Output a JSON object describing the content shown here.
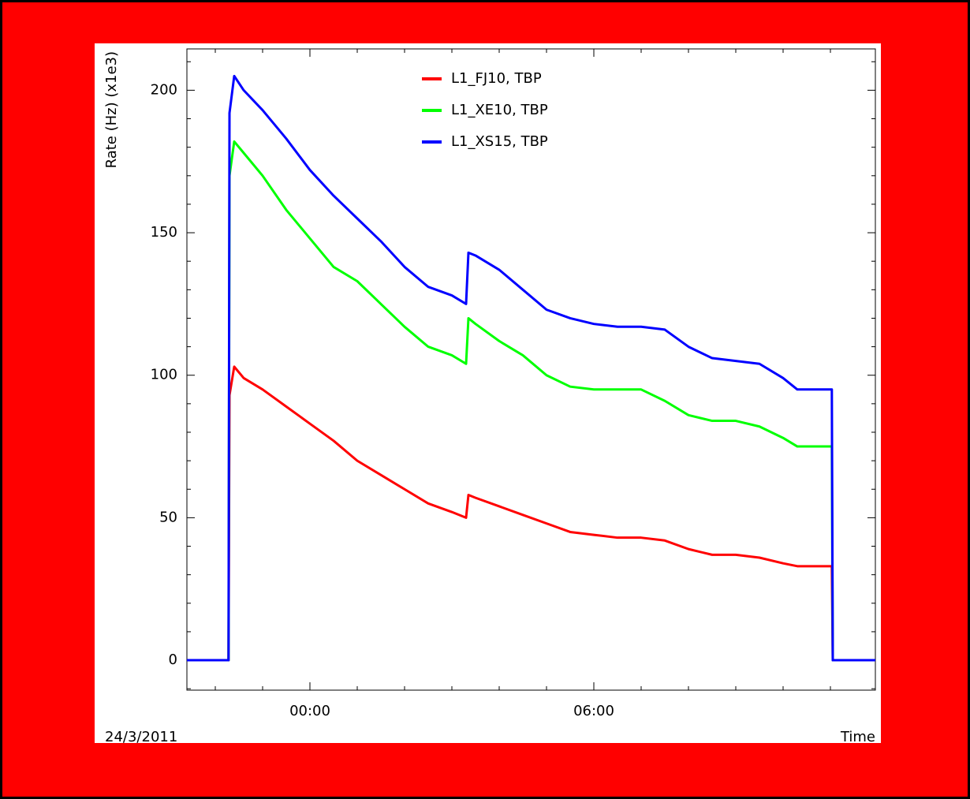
{
  "chart_data": {
    "type": "line",
    "y_label": "Rate (Hz) (x1e3)",
    "x_label": "Time",
    "date_label": "24/3/2011",
    "x": [
      -2.6,
      -1.72,
      -1.7,
      -1.6,
      -1.4,
      -1,
      -0.5,
      0,
      0.5,
      1,
      1.5,
      2,
      2.5,
      3,
      3.3,
      3.35,
      3.5,
      4,
      4.5,
      5,
      5.5,
      6,
      6.5,
      7,
      7.5,
      8,
      8.5,
      9,
      9.5,
      10,
      10.3,
      11.03,
      11.05,
      11.95
    ],
    "series": [
      {
        "name": "L1_FJ10, TBP",
        "color": "#ff0000",
        "values": [
          0,
          0,
          93,
          103,
          99,
          95,
          89,
          83,
          77,
          70,
          65,
          60,
          55,
          52,
          50,
          58,
          57,
          54,
          51,
          48,
          45,
          44,
          43,
          43,
          42,
          39,
          37,
          37,
          36,
          34,
          33,
          33,
          0,
          0
        ]
      },
      {
        "name": "L1_XE10, TBP",
        "color": "#00ff00",
        "values": [
          0,
          0,
          170,
          182,
          178,
          170,
          158,
          148,
          138,
          133,
          125,
          117,
          110,
          107,
          104,
          120,
          118,
          112,
          107,
          100,
          96,
          95,
          95,
          95,
          91,
          86,
          84,
          84,
          82,
          78,
          75,
          75,
          0,
          0
        ]
      },
      {
        "name": "L1_XS15, TBP",
        "color": "#0000ff",
        "values": [
          0,
          0,
          192,
          205,
          200,
          193,
          183,
          172,
          163,
          155,
          147,
          138,
          131,
          128,
          125,
          143,
          142,
          137,
          130,
          123,
          120,
          118,
          117,
          117,
          116,
          110,
          106,
          105,
          104,
          99,
          95,
          95,
          0,
          0
        ]
      }
    ],
    "xlim": [
      -2.6,
      11.95
    ],
    "xticks": [
      {
        "value": 0,
        "label": "00:00"
      },
      {
        "value": 6,
        "label": "06:00"
      }
    ],
    "x_minor_ticks": [
      -2,
      -1,
      1,
      2,
      3,
      4,
      5,
      7,
      8,
      9,
      10,
      11
    ],
    "ylim": [
      -10.5,
      214.5
    ],
    "yticks": [
      0,
      50,
      100,
      150,
      200
    ],
    "y_minor_ticks": [
      -10,
      10,
      20,
      30,
      40,
      60,
      70,
      80,
      90,
      110,
      120,
      130,
      140,
      160,
      170,
      180,
      190,
      210
    ],
    "legend": "top-center"
  }
}
